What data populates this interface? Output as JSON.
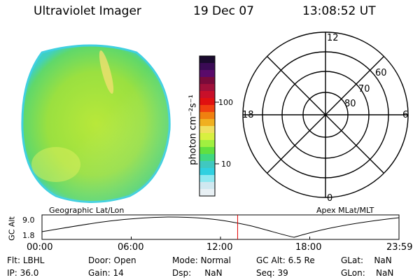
{
  "header": {
    "title": "Ultraviolet Imager",
    "date": "19 Dec 07",
    "time": "13:08:52 UT"
  },
  "colorbar": {
    "unit_label": "photon cm⁻²s⁻¹",
    "ticks": [
      "100",
      "10"
    ],
    "colors": [
      "#1a0a2e",
      "#3a0a55",
      "#5a0a6a",
      "#7a0a3a",
      "#a0103a",
      "#c8102a",
      "#e01010",
      "#f04010",
      "#f08010",
      "#f0b020",
      "#f0e060",
      "#d8f040",
      "#a0f040",
      "#60e040",
      "#40d880",
      "#40c8c0",
      "#30d0e0",
      "#90e8f0",
      "#d0e8f0",
      "#e8f0f4"
    ]
  },
  "polar": {
    "labels": {
      "top": "12",
      "bottom": "0",
      "left": "18",
      "right": "6",
      "lat60": "60",
      "lat70": "70",
      "lat80": "80"
    }
  },
  "timeline": {
    "left_caption": "Geographic Lat/Lon",
    "right_caption": "Apex MLat/MLT",
    "ylabel": "GC Alt",
    "ytick_top": "9.0",
    "ytick_bottom": "1.8",
    "xticks": [
      "00:00",
      "06:00",
      "12:00",
      "18:00",
      "23:59"
    ],
    "current_marker_hour": 13.15,
    "marker_color": "#e00000"
  },
  "status": {
    "row1": [
      {
        "k": "Flt:",
        "v": "LBHL"
      },
      {
        "k": "Door:",
        "v": "Open"
      },
      {
        "k": "Mode:",
        "v": "Normal"
      },
      {
        "k": "GC Alt:",
        "v": "6.5 Re"
      },
      {
        "k": "GLat:",
        "v": "NaN"
      }
    ],
    "row2": [
      {
        "k": "IP:",
        "v": "36.0"
      },
      {
        "k": "Gain:",
        "v": "14"
      },
      {
        "k": "Dsp:",
        "v": "NaN"
      },
      {
        "k": "Seq:",
        "v": "39"
      },
      {
        "k": "GLon:",
        "v": "NaN"
      }
    ]
  }
}
